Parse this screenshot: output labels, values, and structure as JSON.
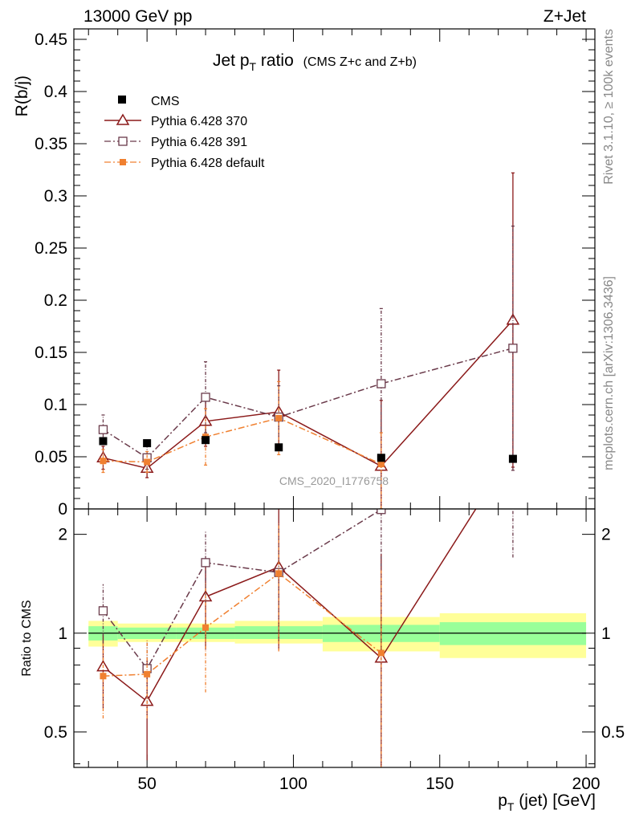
{
  "header": {
    "left": "13000 GeV pp",
    "right": "Z+Jet"
  },
  "side_labels": {
    "rivet": "Rivet 3.1.10, ≥ 100k events",
    "mcplots": "mcplots.cern.ch [arXiv:1306.3436]"
  },
  "watermark": "CMS_2020_I1776758",
  "chart_data": [
    {
      "type": "scatter",
      "panel": "main",
      "title_main": "Jet p",
      "title_sub": "T",
      "title_tail": " ratio",
      "title_small": "(CMS  Z+c and Z+b)",
      "ylabel": "R(b/j)",
      "ylim": [
        0,
        0.46
      ],
      "xlim": [
        25,
        203
      ],
      "y_ticks": [
        0,
        0.05,
        0.1,
        0.15,
        0.2,
        0.25,
        0.3,
        0.35,
        0.4,
        0.45
      ],
      "y_tick_labels": [
        "0",
        "0.05",
        "0.1",
        "0.15",
        "0.2",
        "0.25",
        "0.3",
        "0.35",
        "0.4",
        "0.45"
      ],
      "legend_position": "top-left",
      "series": [
        {
          "name": "CMS",
          "style": "data",
          "color": "#000000",
          "x": [
            35,
            50,
            70,
            95,
            130,
            175
          ],
          "y": [
            0.065,
            0.063,
            0.066,
            0.059,
            0.049,
            0.048
          ]
        },
        {
          "name": "Pythia 6.428 370",
          "style": "solid",
          "marker": "triangle",
          "color": "#8b1a1a",
          "x": [
            35,
            50,
            70,
            95,
            130,
            175
          ],
          "y": [
            0.049,
            0.039,
            0.084,
            0.093,
            0.041,
            0.181
          ],
          "err_low": [
            0.011,
            0.009,
            0.024,
            0.035,
            0.041,
            0.141
          ],
          "err_high": [
            0.011,
            0.009,
            0.024,
            0.04,
            0.063,
            0.141
          ]
        },
        {
          "name": "Pythia 6.428 391",
          "style": "dashdot",
          "marker": "square-open",
          "color": "#6a3a4a",
          "x": [
            35,
            50,
            70,
            95,
            130,
            175
          ],
          "y": [
            0.076,
            0.049,
            0.107,
            0.088,
            0.12,
            0.154
          ],
          "err_low": [
            0.014,
            0.011,
            0.034,
            0.03,
            0.12,
            0.117
          ],
          "err_high": [
            0.014,
            0.011,
            0.034,
            0.03,
            0.072,
            0.117
          ]
        },
        {
          "name": "Pythia 6.428 default",
          "style": "dashdot",
          "marker": "square-filled",
          "color": "#f08030",
          "x": [
            35,
            50,
            70,
            95,
            130,
            175
          ],
          "y": [
            0.046,
            0.045,
            0.069,
            0.087,
            0.043,
            null
          ],
          "err_low": [
            0.011,
            0.01,
            0.027,
            0.035,
            0.043,
            null
          ],
          "err_high": [
            0.011,
            0.01,
            0.027,
            0.035,
            0.03,
            null
          ]
        }
      ]
    },
    {
      "type": "line",
      "panel": "ratio",
      "ylabel": "Ratio to CMS",
      "xlabel_main": "p",
      "xlabel_sub": "T",
      "xlabel_tail": " (jet) [GeV]",
      "ylim": [
        0.39,
        2.39
      ],
      "xlim": [
        25,
        203
      ],
      "x_ticks": [
        50,
        100,
        150,
        200
      ],
      "x_tick_labels": [
        "50",
        "100",
        "150",
        "200"
      ],
      "y_ticks": [
        0.5,
        1,
        2
      ],
      "y_tick_labels": [
        "0.5",
        "1",
        "2"
      ],
      "bands": {
        "x_edges": [
          30,
          40,
          60,
          80,
          110,
          150,
          200
        ],
        "inner_low": [
          0.95,
          0.96,
          0.96,
          0.96,
          0.94,
          0.92
        ],
        "inner_high": [
          1.05,
          1.04,
          1.04,
          1.05,
          1.06,
          1.08
        ],
        "outer_low": [
          0.91,
          0.94,
          0.94,
          0.93,
          0.88,
          0.84
        ],
        "outer_high": [
          1.09,
          1.07,
          1.07,
          1.09,
          1.12,
          1.15
        ],
        "inner_color": "#99ff99",
        "outer_color": "#ffff99"
      },
      "series": [
        {
          "name": "Pythia 6.428 370",
          "x": [
            35,
            50,
            70,
            95,
            130,
            175
          ],
          "y": [
            0.79,
            0.62,
            1.29,
            1.59,
            0.84,
            3.6
          ],
          "err_low": [
            0.2,
            0.21,
            0.4,
            0.7,
            0.7,
            1.2
          ],
          "err_high": [
            0.2,
            0.21,
            0.4,
            0.8,
            0.9,
            1.2
          ]
        },
        {
          "name": "Pythia 6.428 391",
          "x": [
            35,
            50,
            70,
            95,
            130,
            175
          ],
          "y": [
            1.17,
            0.78,
            1.64,
            1.53,
            2.38,
            3.2
          ],
          "err_low": [
            0.24,
            0.17,
            0.4,
            0.6,
            2.3,
            1.5
          ],
          "err_high": [
            0.24,
            0.17,
            0.4,
            0.6,
            1.5,
            1.5
          ]
        },
        {
          "name": "Pythia 6.428 default",
          "x": [
            35,
            50,
            70,
            95,
            130
          ],
          "y": [
            0.74,
            0.75,
            1.04,
            1.52,
            0.87
          ],
          "err_low": [
            0.19,
            0.2,
            0.38,
            0.64,
            0.8
          ],
          "err_high": [
            0.19,
            0.2,
            0.38,
            0.64,
            0.7
          ]
        }
      ]
    }
  ]
}
